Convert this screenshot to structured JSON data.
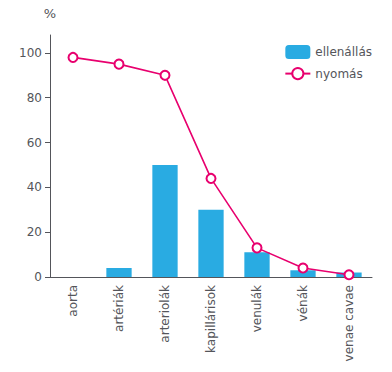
{
  "chart_data": {
    "type": "bar",
    "categories": [
      "aorta",
      "artériák",
      "arteriolák",
      "kapillárisok",
      "venulák",
      "vénák",
      "venae cavae"
    ],
    "series": [
      {
        "name": "ellenállás",
        "type": "bar",
        "color": "#29abe2",
        "values": [
          0,
          4,
          50,
          30,
          11,
          3,
          2
        ]
      },
      {
        "name": "nyomás",
        "type": "line",
        "color": "#e8006e",
        "marker": "circle",
        "values": [
          98,
          95,
          90,
          44,
          13,
          4,
          1
        ]
      }
    ],
    "ylabel": "%",
    "ylim": [
      0,
      108
    ],
    "yticks": [
      0,
      20,
      40,
      60,
      80,
      100
    ],
    "grid": false,
    "legend": "upper right"
  }
}
